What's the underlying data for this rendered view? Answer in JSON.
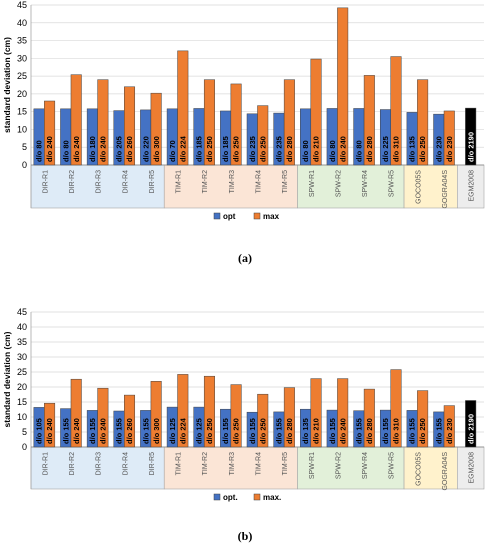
{
  "colors": {
    "opt": "#4472C4",
    "max": "#ED7D31",
    "egm": "#000000",
    "grid": "#D9D9D9",
    "group_dir": "#DEEBF7",
    "group_tim": "#FBE5D6",
    "group_spw": "#E2F0D9",
    "group_goco": "#FFF2CC",
    "group_egm": "#EDEDED"
  },
  "chart_data": [
    {
      "type": "bar",
      "ylabel": "standard deviation (cm)",
      "ylim": [
        0,
        45
      ],
      "yticks": [
        0,
        5,
        10,
        15,
        20,
        25,
        30,
        35,
        40,
        45
      ],
      "grid": true,
      "legend_position": "bottom",
      "caption": "(a)",
      "categories": [
        "DIR-R1",
        "DIR-R2",
        "DIR-R3",
        "DIR-R4",
        "DIR-R5",
        "TIM-R1",
        "TIM-R2",
        "TIM-R3",
        "TIM-R4",
        "TIM-R5",
        "SPW-R1",
        "SPW-R2",
        "SPW-R4",
        "SPW-R5",
        "GOCO05S",
        "GOGRA04S",
        "EGM2008"
      ],
      "series": [
        {
          "name": "opt",
          "values": [
            15.8,
            15.8,
            15.8,
            15.3,
            15.5,
            15.8,
            15.9,
            15.2,
            14.4,
            14.6,
            15.8,
            15.9,
            15.9,
            15.6,
            14.8,
            14.3,
            null
          ],
          "labels": [
            "d/o 80",
            "d/o 80",
            "d/o 180",
            "d/o 205",
            "d/o 220",
            "d/o 70",
            "d/o 185",
            "d/o 185",
            "d/o 235",
            "d/o 235",
            "d/o 80",
            "d/o 80",
            "d/o 80",
            "d/o 225",
            "d/o 135",
            "d/o 230",
            ""
          ]
        },
        {
          "name": "max",
          "values": [
            18.0,
            25.4,
            24.0,
            22.0,
            20.2,
            32.1,
            24.0,
            22.8,
            16.7,
            24.0,
            29.8,
            44.2,
            25.2,
            30.5,
            24.0,
            15.2,
            null
          ],
          "labels": [
            "d/o 240",
            "d/o 240",
            "d/o 240",
            "d/o 260",
            "d/o 300",
            "d/o 224",
            "d/o 250",
            "d/o 250",
            "d/o 250",
            "d/o 280",
            "d/o 210",
            "d/o 240",
            "d/o 280",
            "d/o 310",
            "d/o 250",
            "d/o 230",
            ""
          ]
        },
        {
          "name": "EGM2008",
          "values": [
            null,
            null,
            null,
            null,
            null,
            null,
            null,
            null,
            null,
            null,
            null,
            null,
            null,
            null,
            null,
            null,
            16.0
          ],
          "labels": [
            "",
            "",
            "",
            "",
            "",
            "",
            "",
            "",
            "",
            "",
            "",
            "",
            "",
            "",
            "",
            "",
            "d/o 2190"
          ]
        }
      ]
    },
    {
      "type": "bar",
      "ylabel": "standard deviation (cm)",
      "ylim": [
        0,
        45
      ],
      "yticks": [
        0,
        5,
        10,
        15,
        20,
        25,
        30,
        35,
        40,
        45
      ],
      "grid": true,
      "legend_position": "bottom",
      "caption": "(b)",
      "categories": [
        "DIR-R1",
        "DIR-R2",
        "DIR-R3",
        "DIR-R4",
        "DIR-R5",
        "TIM-R1",
        "TIM-R2",
        "TIM-R3",
        "TIM-R4",
        "TIM-R5",
        "SPW-R1",
        "SPW-R2",
        "SPW-R4",
        "SPW-R5",
        "GOCO05S",
        "GOGRA04S",
        "EGM2008"
      ],
      "series": [
        {
          "name": "opt.",
          "values": [
            13.2,
            12.8,
            12.2,
            12.0,
            12.2,
            13.3,
            13.3,
            12.6,
            11.6,
            11.7,
            12.6,
            12.3,
            12.1,
            12.3,
            12.2,
            11.7,
            null
          ],
          "labels": [
            "d/o 105",
            "d/o 155",
            "d/o 155",
            "d/o 155",
            "d/o 155",
            "d/o 125",
            "d/o 125",
            "d/o 155",
            "d/o 155",
            "d/o 155",
            "d/o 135",
            "d/o 155",
            "d/o 155",
            "d/o 155",
            "d/o 155",
            "d/o 155",
            ""
          ]
        },
        {
          "name": "max.",
          "values": [
            14.6,
            22.6,
            19.6,
            17.3,
            21.9,
            24.2,
            23.6,
            20.8,
            17.6,
            19.8,
            22.8,
            22.8,
            19.3,
            25.8,
            18.8,
            13.8,
            null
          ],
          "labels": [
            "d/o 240",
            "d/o 240",
            "d/o 240",
            "d/o 260",
            "d/o 300",
            "d/o 224",
            "d/o 250",
            "d/o 250",
            "d/o 250",
            "d/o 280",
            "d/o 210",
            "d/o 240",
            "d/o 280",
            "d/o 310",
            "d/o 250",
            "d/o 230",
            ""
          ]
        },
        {
          "name": "EGM2008",
          "values": [
            null,
            null,
            null,
            null,
            null,
            null,
            null,
            null,
            null,
            null,
            null,
            null,
            null,
            null,
            null,
            null,
            15.5
          ],
          "labels": [
            "",
            "",
            "",
            "",
            "",
            "",
            "",
            "",
            "",
            "",
            "",
            "",
            "",
            "",
            "",
            "",
            "d/o 2190"
          ]
        }
      ]
    }
  ]
}
